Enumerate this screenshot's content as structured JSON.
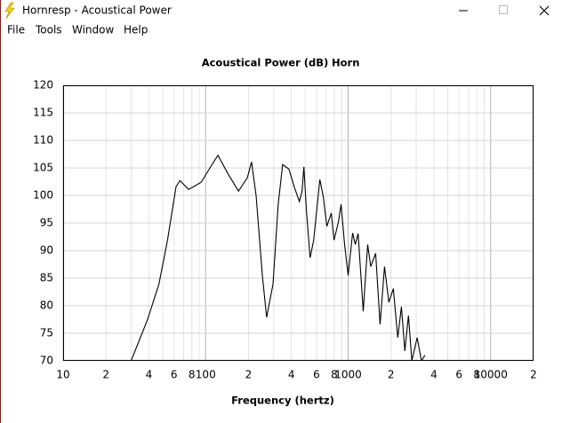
{
  "window": {
    "title": "Hornresp - Acoustical Power",
    "menu": [
      "File",
      "Tools",
      "Window",
      "Help"
    ]
  },
  "chart_data": {
    "type": "line",
    "title": "Acoustical Power (dB)",
    "subtitle": "Horn",
    "xlabel": "Frequency (hertz)",
    "xscale": "log",
    "grid": true,
    "color": "#000000",
    "xlim": [
      10,
      20000
    ],
    "ylim": [
      70,
      120
    ],
    "xticks": [
      10,
      {
        "value": 20,
        "label": "2"
      },
      {
        "value": 40,
        "label": "4"
      },
      {
        "value": 60,
        "label": "6"
      },
      {
        "value": 80,
        "label": "8"
      },
      100,
      {
        "value": 200,
        "label": "2"
      },
      {
        "value": 400,
        "label": "4"
      },
      {
        "value": 600,
        "label": "6"
      },
      {
        "value": 800,
        "label": "8"
      },
      1000,
      {
        "value": 2000,
        "label": "2"
      },
      {
        "value": 4000,
        "label": "4"
      },
      {
        "value": 6000,
        "label": "6"
      },
      {
        "value": 8000,
        "label": "8"
      },
      10000,
      {
        "value": 20000,
        "label": "2"
      }
    ],
    "yticks": [
      70,
      75,
      80,
      85,
      90,
      95,
      100,
      105,
      110,
      115,
      120
    ],
    "x": [
      30,
      39,
      47,
      54,
      62,
      66,
      76,
      93,
      106,
      122,
      143,
      170,
      196,
      210,
      226,
      250,
      268,
      297,
      323,
      347,
      384,
      418,
      455,
      475,
      489,
      511,
      541,
      573,
      633,
      670,
      709,
      762,
      796,
      855,
      892,
      944,
      1000,
      1075,
      1122,
      1175,
      1276,
      1371,
      1440,
      1560,
      1675,
      1800,
      1930,
      2075,
      2230,
      2365,
      2500,
      2650,
      2800,
      3050,
      3270,
      3460
    ],
    "values": [
      70,
      77.4,
      83.9,
      91.9,
      101.6,
      102.7,
      101.1,
      102.4,
      104.8,
      107.3,
      104,
      100.8,
      103.2,
      106.1,
      100,
      85.5,
      77.9,
      83.9,
      98.4,
      105.6,
      104.8,
      101.6,
      98.9,
      100.8,
      105.2,
      96.8,
      88.7,
      91.9,
      102.9,
      99.7,
      94.4,
      96.8,
      91.9,
      95.2,
      98.4,
      91.1,
      85.5,
      93.2,
      91.1,
      93.1,
      79,
      91.1,
      87.1,
      89.5,
      76.6,
      87.1,
      80.6,
      83.1,
      74.2,
      79.8,
      71.8,
      78.2,
      70,
      74.2,
      70,
      71
    ]
  }
}
